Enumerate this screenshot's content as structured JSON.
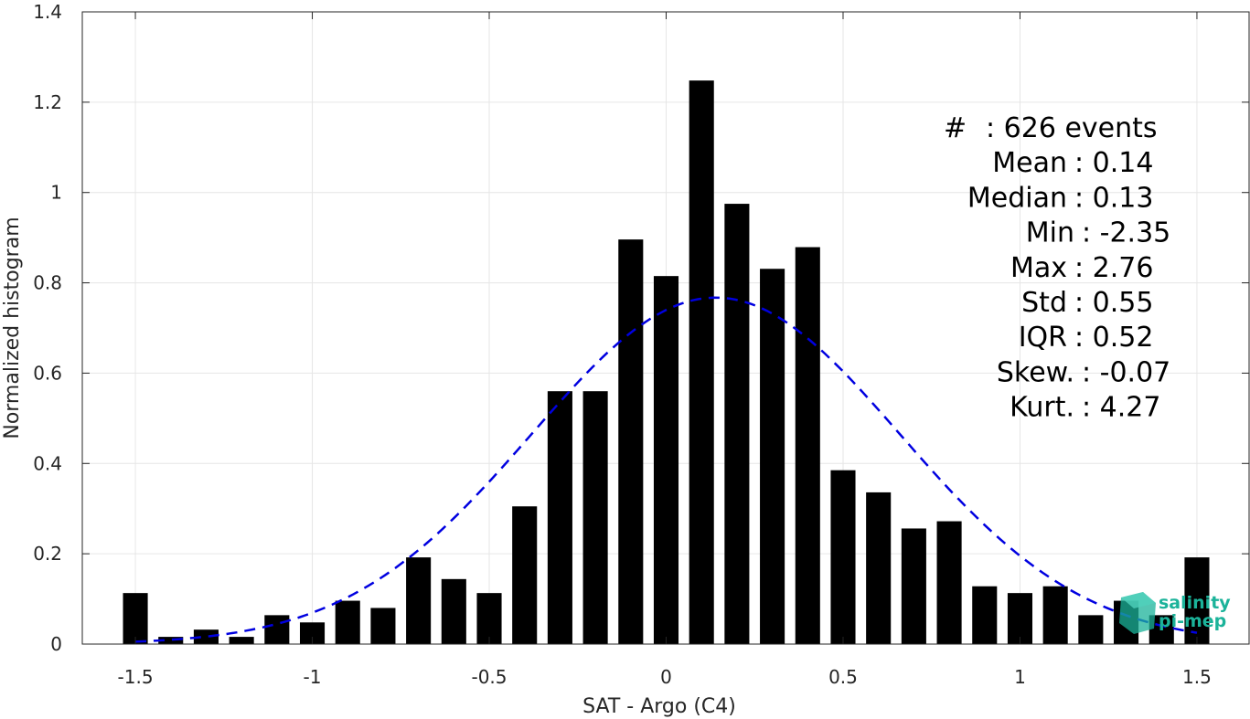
{
  "chart_data": {
    "type": "bar",
    "xlabel": "SAT - Argo (C4)",
    "ylabel": "Normalized histogram",
    "xlim": [
      -1.65,
      1.65
    ],
    "ylim": [
      0,
      1.4
    ],
    "xticks": [
      -1.5,
      -1,
      -0.5,
      0,
      0.5,
      1,
      1.5
    ],
    "xtick_labels": [
      "-1.5",
      "-1",
      "-0.5",
      "0",
      "0.5",
      "1",
      "1.5"
    ],
    "yticks": [
      0,
      0.2,
      0.4,
      0.6,
      0.8,
      1,
      1.2,
      1.4
    ],
    "ytick_labels": [
      "0",
      "0.2",
      "0.4",
      "0.6",
      "0.8",
      "1",
      "1.2",
      "1.4"
    ],
    "grid": true,
    "bin_width": 0.1,
    "bar_width": 0.07,
    "bar_color": "#000000",
    "x": [
      -1.5,
      -1.4,
      -1.3,
      -1.2,
      -1.1,
      -1.0,
      -0.9,
      -0.8,
      -0.7,
      -0.6,
      -0.5,
      -0.4,
      -0.3,
      -0.2,
      -0.1,
      0.0,
      0.1,
      0.2,
      0.3,
      0.4,
      0.5,
      0.6,
      0.7,
      0.8,
      0.9,
      1.0,
      1.1,
      1.2,
      1.3,
      1.4,
      1.5
    ],
    "values": [
      0.113,
      0.016,
      0.032,
      0.016,
      0.064,
      0.048,
      0.096,
      0.08,
      0.192,
      0.144,
      0.113,
      0.305,
      0.56,
      0.56,
      0.896,
      0.815,
      1.248,
      0.975,
      0.831,
      0.879,
      0.385,
      0.336,
      0.256,
      0.272,
      0.128,
      0.113,
      0.128,
      0.064,
      0.096,
      0.064,
      0.192
    ],
    "fit": {
      "type": "normal",
      "mean": 0.14,
      "std": 0.52,
      "color": "#0000e0",
      "style": "dashed",
      "x_range": [
        -1.5,
        1.5
      ]
    },
    "annotations": [
      {
        "label": "#",
        "value": ": 626 events"
      },
      {
        "label": "Mean",
        "value": ": 0.14"
      },
      {
        "label": "Median",
        "value": ": 0.13"
      },
      {
        "label": "Min",
        "value": ": -2.35"
      },
      {
        "label": "Max",
        "value": ": 2.76"
      },
      {
        "label": "Std",
        "value": ": 0.55"
      },
      {
        "label": "IQR",
        "value": ": 0.52"
      },
      {
        "label": "Skew.",
        "value": ": -0.07"
      },
      {
        "label": "Kurt.",
        "value": ": 4.27"
      }
    ]
  },
  "logo": {
    "line1": "salinity",
    "line2": "pi-mep",
    "color": "#1bb39a"
  }
}
